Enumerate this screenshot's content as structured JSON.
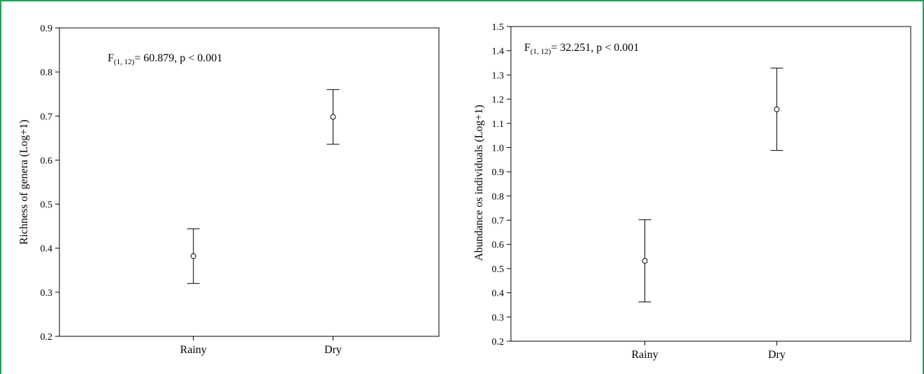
{
  "chart_data": [
    {
      "type": "scatter",
      "chart_subtype": "mean with error bars",
      "annotation": {
        "main": "F",
        "sub": "(1, 12)",
        "rest": "= 60.879, p < 0.001"
      },
      "xlabel": "",
      "ylabel": "Richness of genera (Log+1)",
      "categories": [
        "Rainy",
        "Dry"
      ],
      "values": [
        0.382,
        0.698
      ],
      "upper": [
        0.444,
        0.76
      ],
      "lower": [
        0.32,
        0.636
      ],
      "ylim": [
        0.2,
        0.9
      ],
      "yticks": [
        "0.2",
        "0.3",
        "0.4",
        "0.5",
        "0.6",
        "0.7",
        "0.8",
        "0.9"
      ],
      "grid": false,
      "legend": "none"
    },
    {
      "type": "scatter",
      "chart_subtype": "mean with error bars",
      "annotation": {
        "main": "F",
        "sub": "(1, 12)",
        "rest": "= 32.251, p < 0.001"
      },
      "xlabel": "",
      "ylabel": "Abundance os individuals (Log+1)",
      "categories": [
        "Rainy",
        "Dry"
      ],
      "values": [
        0.532,
        1.158
      ],
      "upper": [
        0.702,
        1.328
      ],
      "lower": [
        0.362,
        0.988
      ],
      "ylim": [
        0.2,
        1.5
      ],
      "yticks": [
        "0.2",
        "0.3",
        "0.4",
        "0.5",
        "0.6",
        "0.7",
        "0.8",
        "0.9",
        "1.0",
        "1.1",
        "1.2",
        "1.3",
        "1.4",
        "1.5"
      ],
      "grid": false,
      "legend": "none"
    }
  ]
}
